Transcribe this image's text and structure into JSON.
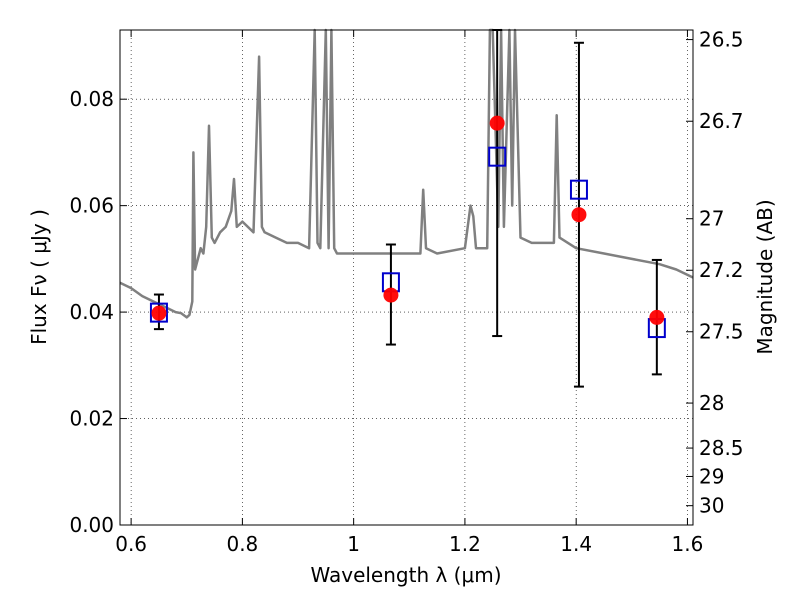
{
  "chart_data": {
    "type": "scatter",
    "title": "",
    "xlabel": "Wavelength  λ (μm)",
    "ylabel": "Flux  Fν  ( μJy )",
    "ylabel_right": "Magnitude (AB)",
    "xlim": [
      0.58,
      1.61
    ],
    "ylim": [
      0.0,
      0.093
    ],
    "grid": true,
    "x_ticks": [
      0.6,
      0.8,
      1.0,
      1.2,
      1.4,
      1.6
    ],
    "x_tick_labels": [
      "0.6",
      "0.8",
      "1",
      "1.2",
      "1.4",
      "1.6"
    ],
    "y_ticks": [
      0.0,
      0.02,
      0.04,
      0.06,
      0.08
    ],
    "y_tick_labels": [
      "0.00",
      "0.02",
      "0.04",
      "0.06",
      "0.08"
    ],
    "mag_ticks": [
      26.5,
      26.7,
      27,
      27.2,
      27.5,
      28,
      28.5,
      29,
      30
    ],
    "mag_tick_labels": [
      "26.5",
      "26.7",
      "27",
      "27.2",
      "27.5",
      "28",
      "28.5",
      "29",
      "30"
    ],
    "series": [
      {
        "type": "observed",
        "color": "#ff0000",
        "marker": "circle",
        "x": [
          0.65,
          1.067,
          1.258,
          1.405,
          1.545
        ],
        "y": [
          0.0398,
          0.0432,
          0.0755,
          0.0583,
          0.039
        ],
        "yerr_low": [
          0.003,
          0.0093,
          0.04,
          0.0323,
          0.0107
        ],
        "yerr_high": [
          0.0035,
          0.0095,
          0.019,
          0.0323,
          0.0108
        ]
      },
      {
        "type": "model-photometry",
        "color": "#0000cc",
        "marker": "open-square",
        "x": [
          0.65,
          1.067,
          1.258,
          1.405,
          1.545
        ],
        "y": [
          0.0399,
          0.0456,
          0.0692,
          0.063,
          0.037
        ]
      },
      {
        "type": "model-spectrum",
        "color": "#808080",
        "marker": "line",
        "x": [
          0.58,
          0.6,
          0.62,
          0.64,
          0.66,
          0.68,
          0.69,
          0.7,
          0.705,
          0.71,
          0.712,
          0.715,
          0.72,
          0.725,
          0.73,
          0.735,
          0.74,
          0.745,
          0.75,
          0.76,
          0.77,
          0.78,
          0.785,
          0.79,
          0.8,
          0.82,
          0.83,
          0.835,
          0.84,
          0.86,
          0.88,
          0.9,
          0.92,
          0.93,
          0.935,
          0.94,
          0.95,
          0.955,
          0.96,
          0.965,
          0.97,
          1.0,
          1.05,
          1.1,
          1.12,
          1.125,
          1.13,
          1.15,
          1.2,
          1.21,
          1.215,
          1.22,
          1.24,
          1.245,
          1.25,
          1.26,
          1.265,
          1.27,
          1.28,
          1.285,
          1.29,
          1.3,
          1.32,
          1.35,
          1.36,
          1.365,
          1.37,
          1.4,
          1.45,
          1.5,
          1.55,
          1.58,
          1.61
        ],
        "y": [
          0.0455,
          0.0445,
          0.043,
          0.042,
          0.041,
          0.04,
          0.0398,
          0.039,
          0.0395,
          0.042,
          0.07,
          0.048,
          0.05,
          0.052,
          0.051,
          0.056,
          0.075,
          0.054,
          0.053,
          0.055,
          0.056,
          0.059,
          0.065,
          0.056,
          0.057,
          0.055,
          0.088,
          0.056,
          0.055,
          0.054,
          0.053,
          0.053,
          0.052,
          0.093,
          0.053,
          0.052,
          0.093,
          0.052,
          0.093,
          0.052,
          0.051,
          0.051,
          0.051,
          0.051,
          0.051,
          0.063,
          0.052,
          0.051,
          0.052,
          0.06,
          0.058,
          0.052,
          0.052,
          0.093,
          0.093,
          0.056,
          0.093,
          0.056,
          0.093,
          0.06,
          0.093,
          0.054,
          0.053,
          0.053,
          0.053,
          0.077,
          0.054,
          0.052,
          0.051,
          0.05,
          0.049,
          0.048,
          0.0465
        ]
      }
    ]
  }
}
